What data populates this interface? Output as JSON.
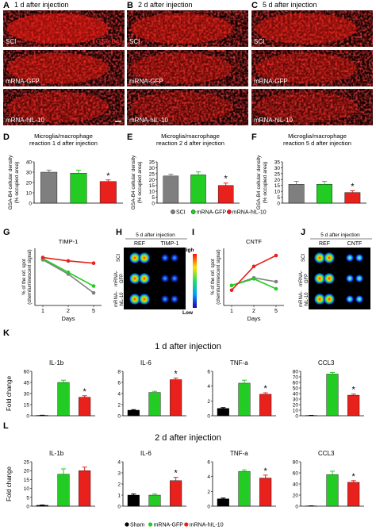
{
  "micrographs": {
    "columns": [
      {
        "letter": "A",
        "title": "1 d after injection"
      },
      {
        "letter": "B",
        "title": "2 d after injection"
      },
      {
        "letter": "C",
        "title": "5 d after injection"
      }
    ],
    "row_labels": [
      "SCI",
      "mRNA-GFP",
      "mRNA-hIL-10"
    ],
    "stain_label": "GSA-B4"
  },
  "density_panels": {
    "ylabel": "GSA-B4 cellular density (% occupied area)",
    "legend": [
      "SCI",
      "mRNA-GFP",
      "mRNA-hIL-10"
    ],
    "colors": [
      "#7f7f7f",
      "#22cc22",
      "#e8211d"
    ]
  },
  "blot_panels": {
    "timp": {
      "letter": "H",
      "header": "5 d after injection",
      "cols": [
        "REF",
        "TIMP-1"
      ],
      "rows": [
        "SCI",
        "mRNA-GFP",
        "mRNA-hIL-10"
      ]
    },
    "cntf": {
      "letter": "J",
      "header": "5 d after injection",
      "cols": [
        "REF",
        "CNTF"
      ],
      "rows": [
        "SCI",
        "mRNA-GFP",
        "mRNA-hIL-10"
      ]
    },
    "scale_high": "High",
    "scale_low": "Low"
  },
  "sections": {
    "K": {
      "letter": "K",
      "title": "1 d after injection"
    },
    "L": {
      "letter": "L",
      "title": "2 d after injection"
    },
    "ylabel": "Fold change"
  },
  "bottom_legend": [
    "Sham",
    "mRNA-GFP",
    "mRNA-hIL-10"
  ],
  "chart_data": [
    {
      "id": "D",
      "type": "bar",
      "title": "Microglia/macrophage reaction 1 d after injection",
      "categories": [
        "SCI",
        "mRNA-GFP",
        "mRNA-hIL-10"
      ],
      "values": [
        30,
        29,
        21
      ],
      "errors": [
        2,
        3,
        1.5
      ],
      "ylim": [
        0,
        40
      ],
      "yticks": [
        0,
        10,
        20,
        30,
        40
      ],
      "star": [
        false,
        false,
        true
      ]
    },
    {
      "id": "E",
      "type": "bar",
      "title": "Microglia/macrophage reaction 2 d after injection",
      "categories": [
        "SCI",
        "mRNA-GFP",
        "mRNA-hIL-10"
      ],
      "values": [
        23,
        24,
        15
      ],
      "errors": [
        1.5,
        2.5,
        2
      ],
      "ylim": [
        0,
        35
      ],
      "yticks": [
        0,
        5,
        10,
        15,
        20,
        25,
        30,
        35
      ],
      "star": [
        false,
        false,
        true
      ]
    },
    {
      "id": "F",
      "type": "bar",
      "title": "Microglia/macrophage reaction 5 d after injection",
      "categories": [
        "SCI",
        "mRNA-GFP",
        "mRNA-hIL-10"
      ],
      "values": [
        16,
        16,
        9
      ],
      "errors": [
        2.5,
        2.5,
        1.5
      ],
      "ylim": [
        0,
        35
      ],
      "yticks": [
        0,
        5,
        10,
        15,
        20,
        25,
        30,
        35
      ],
      "star": [
        false,
        false,
        true
      ]
    },
    {
      "id": "G",
      "type": "line",
      "title": "TIMP-1",
      "xlabel": "Days",
      "ylabel": "% of the ref. spot (chemiluminescent signal)",
      "x": [
        1,
        2,
        5
      ],
      "ylim": [
        0,
        10
      ],
      "series": [
        {
          "values": [
            8,
            5.5,
            2.2
          ],
          "color": "#7f7f7f"
        },
        {
          "values": [
            8.2,
            5.8,
            3.4
          ],
          "color": "#22cc22"
        },
        {
          "values": [
            8.4,
            7.8,
            7.4
          ],
          "color": "#e8211d"
        }
      ]
    },
    {
      "id": "I",
      "type": "line",
      "title": "CNTF",
      "xlabel": "Days",
      "ylabel": "% of the ref. spot (chemiluminescent signal)",
      "x": [
        1,
        2,
        5
      ],
      "ylim": [
        0,
        12
      ],
      "series": [
        {
          "values": [
            4.2,
            5.8,
            5.0
          ],
          "color": "#7f7f7f"
        },
        {
          "values": [
            4.2,
            5.6,
            3.5
          ],
          "color": "#22cc22"
        },
        {
          "values": [
            3.2,
            8.2,
            10.5
          ],
          "color": "#e8211d"
        }
      ]
    },
    {
      "id": "K1",
      "type": "bar",
      "title": "IL-1b",
      "categories": [
        "Sham",
        "mRNA-GFP",
        "mRNA-hIL-10"
      ],
      "values": [
        0.5,
        45,
        25
      ],
      "errors": [
        0.2,
        3,
        2
      ],
      "ylim": [
        0,
        60
      ],
      "yticks": [
        0,
        15,
        30,
        45,
        60
      ],
      "star": [
        false,
        false,
        true
      ]
    },
    {
      "id": "K2",
      "type": "bar",
      "title": "IL-6",
      "categories": [
        "Sham",
        "mRNA-GFP",
        "mRNA-hIL-10"
      ],
      "values": [
        1,
        4.2,
        6.5
      ],
      "errors": [
        0.1,
        0.2,
        0.3
      ],
      "ylim": [
        0,
        8
      ],
      "yticks": [
        0,
        2,
        4,
        6,
        8
      ],
      "star": [
        false,
        false,
        true
      ]
    },
    {
      "id": "K3",
      "type": "bar",
      "title": "TNF-a",
      "categories": [
        "Sham",
        "mRNA-GFP",
        "mRNA-hIL-10"
      ],
      "values": [
        1,
        4.4,
        2.9
      ],
      "errors": [
        0.1,
        0.4,
        0.2
      ],
      "ylim": [
        0,
        6
      ],
      "yticks": [
        0,
        2,
        4,
        6
      ],
      "star": [
        false,
        false,
        true
      ]
    },
    {
      "id": "K4",
      "type": "bar",
      "title": "CCL3",
      "categories": [
        "Sham",
        "mRNA-GFP",
        "mRNA-hIL-10"
      ],
      "values": [
        0.5,
        75,
        37
      ],
      "errors": [
        0.2,
        3,
        2
      ],
      "ylim": [
        0,
        80
      ],
      "yticks": [
        0,
        10,
        20,
        30,
        40,
        50,
        60,
        70,
        80
      ],
      "star": [
        false,
        false,
        true
      ]
    },
    {
      "id": "L1",
      "type": "bar",
      "title": "IL-1b",
      "categories": [
        "Sham",
        "mRNA-GFP",
        "mRNA-hIL-10"
      ],
      "values": [
        0.5,
        18,
        20
      ],
      "errors": [
        0.2,
        3,
        2
      ],
      "ylim": [
        0,
        25
      ],
      "yticks": [
        0,
        5,
        10,
        15,
        20,
        25
      ],
      "star": [
        false,
        false,
        false
      ]
    },
    {
      "id": "L2",
      "type": "bar",
      "title": "IL-6",
      "categories": [
        "Sham",
        "mRNA-GFP",
        "mRNA-hIL-10"
      ],
      "values": [
        1,
        1,
        2.3
      ],
      "errors": [
        0.1,
        0.1,
        0.3
      ],
      "ylim": [
        0,
        4
      ],
      "yticks": [
        0,
        1,
        2,
        3,
        4
      ],
      "star": [
        false,
        false,
        true
      ]
    },
    {
      "id": "L3",
      "type": "bar",
      "title": "TNF-a",
      "categories": [
        "Sham",
        "mRNA-GFP",
        "mRNA-hIL-10"
      ],
      "values": [
        1,
        4.7,
        3.8
      ],
      "errors": [
        0.1,
        0.2,
        0.4
      ],
      "ylim": [
        0,
        6
      ],
      "yticks": [
        0,
        2,
        4,
        6
      ],
      "star": [
        false,
        false,
        true
      ]
    },
    {
      "id": "L4",
      "type": "bar",
      "title": "CCL3",
      "categories": [
        "Sham",
        "mRNA-GFP",
        "mRNA-hIL-10"
      ],
      "values": [
        0.5,
        57,
        43
      ],
      "errors": [
        0.2,
        6,
        3
      ],
      "ylim": [
        0,
        80
      ],
      "yticks": [
        0,
        20,
        40,
        60,
        80
      ],
      "star": [
        false,
        false,
        true
      ]
    }
  ]
}
